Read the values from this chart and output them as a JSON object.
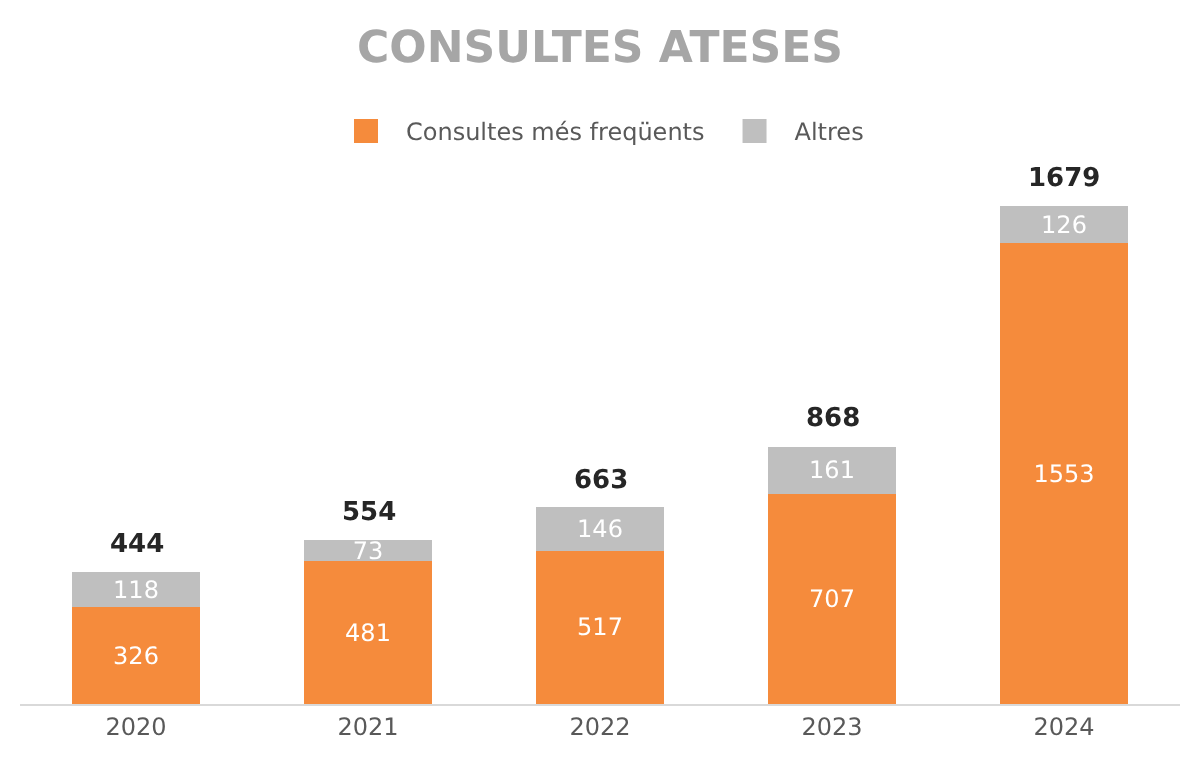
{
  "chart_data": {
    "type": "bar",
    "title": "CONSULTES ATESES",
    "categories": [
      "2020",
      "2021",
      "2022",
      "2023",
      "2024"
    ],
    "series": [
      {
        "name": "Consultes més freqüents",
        "color": "#f58b3c",
        "values": [
          326,
          481,
          517,
          707,
          1553
        ]
      },
      {
        "name": "Altres",
        "color": "#bfbfbf",
        "values": [
          118,
          73,
          146,
          161,
          126
        ]
      }
    ],
    "stacked": true,
    "data_labels": true,
    "totals": [
      "444",
      "554",
      "663",
      "868",
      "1679"
    ],
    "legend": "top",
    "tick_labels": "x"
  }
}
